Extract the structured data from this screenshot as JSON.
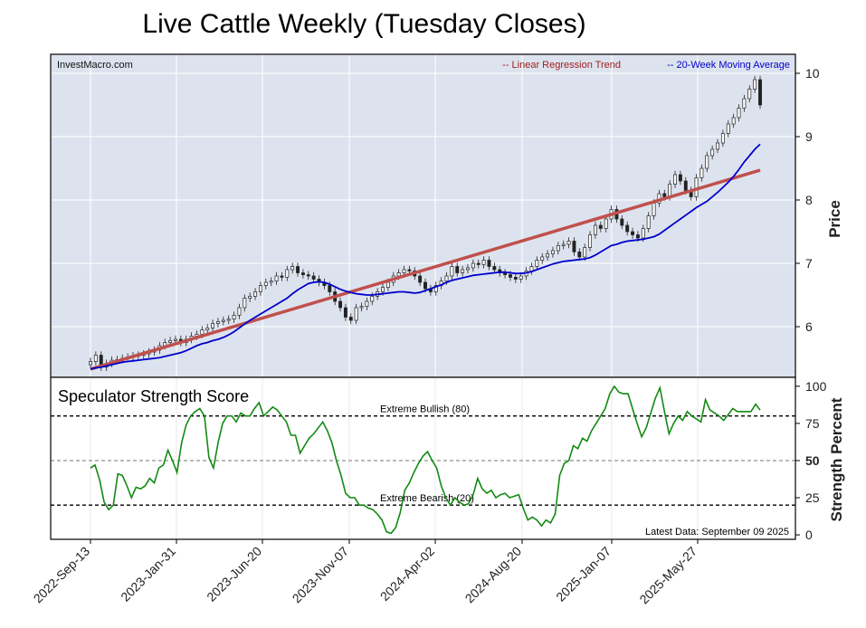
{
  "title": "Live Cattle Weekly (Tuesday Closes)",
  "watermark": "InvestMacro.com",
  "legend": {
    "regression": "-- Linear Regression Trend",
    "moving_average": "-- 20-Week Moving Average",
    "placement": "top-right"
  },
  "colors": {
    "regression": "#c0504d",
    "moving_average": "#0000cc",
    "strength": "#138a13",
    "panel_bg": "#dde3ee"
  },
  "chart_data": [
    {
      "type": "candlestick",
      "ylabel": "Price",
      "ylim": [
        5.2,
        10.3
      ],
      "yticks": [
        6,
        7,
        8,
        9,
        10
      ],
      "xticks": [
        "2022-Sep-13",
        "2023-Jan-31",
        "2023-Jun-20",
        "2023-Nov-07",
        "2024-Apr-02",
        "2024-Aug-20",
        "2025-Jan-07",
        "2025-May-27"
      ],
      "grid": true,
      "regression_line": {
        "start": 5.33,
        "end": 8.47
      },
      "close": [
        5.45,
        5.55,
        5.36,
        5.42,
        5.47,
        5.48,
        5.5,
        5.52,
        5.54,
        5.55,
        5.57,
        5.6,
        5.63,
        5.7,
        5.75,
        5.78,
        5.8,
        5.75,
        5.8,
        5.85,
        5.88,
        5.95,
        5.98,
        6.05,
        6.08,
        6.1,
        6.12,
        6.18,
        6.3,
        6.45,
        6.48,
        6.55,
        6.65,
        6.7,
        6.72,
        6.8,
        6.78,
        6.9,
        6.95,
        6.85,
        6.82,
        6.8,
        6.75,
        6.7,
        6.65,
        6.55,
        6.4,
        6.3,
        6.15,
        6.1,
        6.3,
        6.32,
        6.4,
        6.48,
        6.55,
        6.62,
        6.7,
        6.8,
        6.85,
        6.9,
        6.88,
        6.8,
        6.7,
        6.6,
        6.55,
        6.65,
        6.72,
        6.8,
        6.95,
        6.85,
        6.9,
        6.93,
        7.0,
        6.98,
        7.05,
        6.95,
        6.9,
        6.85,
        6.82,
        6.78,
        6.75,
        6.8,
        6.88,
        6.95,
        7.05,
        7.1,
        7.15,
        7.2,
        7.28,
        7.3,
        7.35,
        7.18,
        7.1,
        7.25,
        7.45,
        7.6,
        7.55,
        7.7,
        7.85,
        7.7,
        7.6,
        7.5,
        7.45,
        7.4,
        7.55,
        7.75,
        7.95,
        8.1,
        8.05,
        8.25,
        8.4,
        8.3,
        8.15,
        8.05,
        8.35,
        8.5,
        8.7,
        8.8,
        8.9,
        9.05,
        9.2,
        9.3,
        9.45,
        9.6,
        9.75,
        9.9,
        9.5
      ],
      "ma20": [
        5.33,
        5.35,
        5.36,
        5.38,
        5.4,
        5.42,
        5.44,
        5.45,
        5.46,
        5.47,
        5.48,
        5.49,
        5.5,
        5.51,
        5.53,
        5.55,
        5.57,
        5.59,
        5.62,
        5.66,
        5.7,
        5.73,
        5.75,
        5.78,
        5.8,
        5.83,
        5.87,
        5.92,
        5.98,
        6.04,
        6.1,
        6.15,
        6.2,
        6.25,
        6.3,
        6.35,
        6.4,
        6.45,
        6.52,
        6.58,
        6.63,
        6.68,
        6.7,
        6.71,
        6.7,
        6.67,
        6.63,
        6.59,
        6.56,
        6.54,
        6.52,
        6.51,
        6.5,
        6.5,
        6.51,
        6.52,
        6.53,
        6.54,
        6.55,
        6.55,
        6.54,
        6.53,
        6.54,
        6.57,
        6.6,
        6.63,
        6.66,
        6.7,
        6.73,
        6.75,
        6.77,
        6.79,
        6.81,
        6.82,
        6.83,
        6.84,
        6.85,
        6.86,
        6.86,
        6.85,
        6.84,
        6.84,
        6.85,
        6.87,
        6.9,
        6.93,
        6.96,
        6.99,
        7.01,
        7.03,
        7.04,
        7.05,
        7.06,
        7.07,
        7.09,
        7.13,
        7.18,
        7.23,
        7.28,
        7.3,
        7.33,
        7.35,
        7.36,
        7.37,
        7.38,
        7.4,
        7.42,
        7.46,
        7.52,
        7.58,
        7.64,
        7.7,
        7.76,
        7.82,
        7.88,
        7.93,
        7.98,
        8.05,
        8.12,
        8.2,
        8.28,
        8.37,
        8.48,
        8.6,
        8.7,
        8.8,
        8.88
      ]
    },
    {
      "type": "line",
      "title": "Speculator Strength Score",
      "ylabel": "Strength Percent",
      "ylim": [
        -3,
        106
      ],
      "yticks": [
        0,
        25,
        50,
        75,
        100
      ],
      "bands": [
        {
          "label": "Extreme Bullish (80)",
          "value": 80
        },
        {
          "label": "",
          "value": 50
        },
        {
          "label": "Extreme Bearish (20)",
          "value": 20
        }
      ],
      "note": "Latest Data: September 09 2025",
      "values": [
        45,
        47,
        37,
        22,
        17,
        20,
        41,
        40,
        33,
        25,
        32,
        31,
        33,
        38,
        35,
        45,
        47,
        57,
        50,
        42,
        62,
        74,
        80,
        83,
        85,
        80,
        52,
        45,
        62,
        75,
        80,
        80,
        76,
        82,
        80,
        80,
        85,
        89,
        80,
        83,
        86,
        84,
        80,
        76,
        67,
        67,
        55,
        60,
        65,
        68,
        72,
        76,
        70,
        62,
        50,
        40,
        28,
        25,
        25,
        20,
        20,
        18,
        17,
        14,
        10,
        2,
        1,
        5,
        15,
        30,
        35,
        42,
        48,
        53,
        56,
        50,
        45,
        33,
        25,
        20,
        25,
        22,
        20,
        21,
        27,
        38,
        31,
        28,
        30,
        25,
        27,
        28,
        25,
        26,
        27,
        18,
        10,
        12,
        10,
        6,
        10,
        8,
        14,
        40,
        48,
        50,
        60,
        58,
        65,
        63,
        70,
        75,
        80,
        85,
        95,
        100,
        96,
        95,
        95,
        85,
        75,
        66,
        72,
        82,
        92,
        99,
        83,
        68,
        75,
        80,
        77,
        83,
        80,
        78,
        76,
        91,
        84,
        82,
        80,
        77,
        81,
        85,
        83,
        83,
        83,
        83,
        88,
        84
      ]
    }
  ]
}
